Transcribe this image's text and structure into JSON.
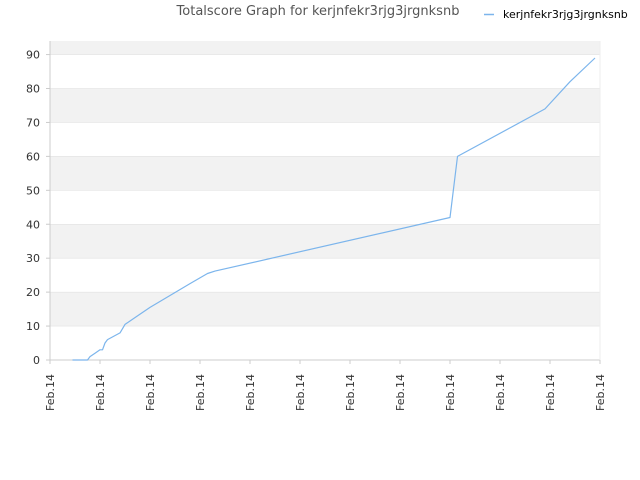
{
  "chart_data": {
    "type": "line",
    "title": "Totalscore Graph for kerjnfekr3rjg3jrgnksnb",
    "xlabel": "",
    "ylabel": "",
    "ylim": [
      0,
      94
    ],
    "y_ticks": [
      "0",
      "10",
      "20",
      "30",
      "40",
      "50",
      "60",
      "70",
      "80",
      "90"
    ],
    "y_tick_values": [
      0,
      10,
      20,
      30,
      40,
      50,
      60,
      70,
      80,
      90
    ],
    "x_ticks": [
      "Feb.14",
      "Feb.14",
      "Feb.14",
      "Feb.14",
      "Feb.14",
      "Feb.14",
      "Feb.14",
      "Feb.14",
      "Feb.14",
      "Feb.14",
      "Feb.14",
      "Feb.14"
    ],
    "xlim": [
      0,
      11
    ],
    "grid": "horizontal alternating bands",
    "legend": {
      "placement": "top-right"
    },
    "colors": {
      "line": "#7cb5ec",
      "band": "#f2f2f2",
      "axis": "#cccccc",
      "gridline": "#dddddd"
    },
    "series": [
      {
        "name": "kerjnfekr3rjg3jrgnksnb",
        "x": [
          0.45,
          0.75,
          0.8,
          0.9,
          1.0,
          1.05,
          1.1,
          1.15,
          1.4,
          1.5,
          1.6,
          1.75,
          2.0,
          2.4,
          2.8,
          3.15,
          3.3,
          8.0,
          8.15,
          9.9,
          10.4,
          10.9
        ],
        "values": [
          0,
          0,
          1,
          2,
          3,
          3,
          5,
          6,
          8,
          10.5,
          11.5,
          13,
          15.5,
          19,
          22.5,
          25.5,
          26.2,
          42,
          60,
          74,
          82,
          89
        ]
      }
    ]
  }
}
